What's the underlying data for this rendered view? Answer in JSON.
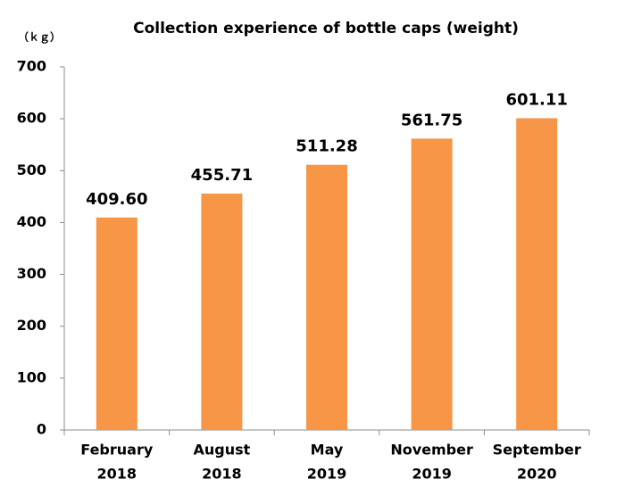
{
  "chart_data": {
    "type": "bar",
    "title": "Collection experience of bottle caps (weight)",
    "y_label": "（ｋｇ）",
    "categories": [
      [
        "February",
        "2018"
      ],
      [
        "August",
        "2018"
      ],
      [
        "May",
        "2019"
      ],
      [
        "November",
        "2019"
      ],
      [
        "September",
        "2020"
      ]
    ],
    "values": [
      409.6,
      455.71,
      511.28,
      561.75,
      601.11
    ],
    "value_labels": [
      "409.60",
      "455.71",
      "511.28",
      "561.75",
      "601.11"
    ],
    "color": "#f79646",
    "ylim": [
      0,
      700
    ],
    "yticks": [
      0,
      100,
      200,
      300,
      400,
      500,
      600,
      700
    ],
    "grid": false
  }
}
